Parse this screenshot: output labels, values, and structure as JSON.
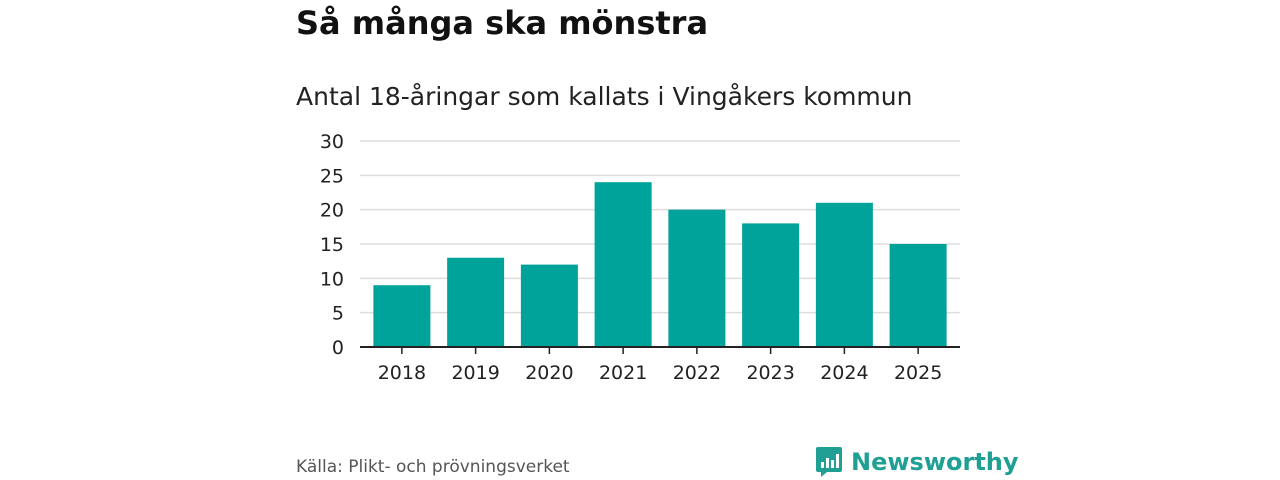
{
  "header": {
    "title": "Så många ska mönstra",
    "subtitle": "Antal 18-åringar som kallats i Vingåkers kommun"
  },
  "footer": {
    "source": "Källa: Plikt- och prövningsverket",
    "brand": "Newsworthy"
  },
  "colors": {
    "bar": "#00a39a",
    "grid": "#dddddd",
    "axis": "#222222",
    "brand": "#20a095"
  },
  "chart_data": {
    "type": "bar",
    "title": "Så många ska mönstra",
    "subtitle": "Antal 18-åringar som kallats i Vingåkers kommun",
    "xlabel": "",
    "ylabel": "",
    "categories": [
      "2018",
      "2019",
      "2020",
      "2021",
      "2022",
      "2023",
      "2024",
      "2025"
    ],
    "values": [
      9,
      13,
      12,
      24,
      20,
      18,
      21,
      15
    ],
    "ylim": [
      0,
      30
    ],
    "yticks": [
      0,
      5,
      10,
      15,
      20,
      25,
      30
    ],
    "grid": true,
    "legend": "none"
  }
}
